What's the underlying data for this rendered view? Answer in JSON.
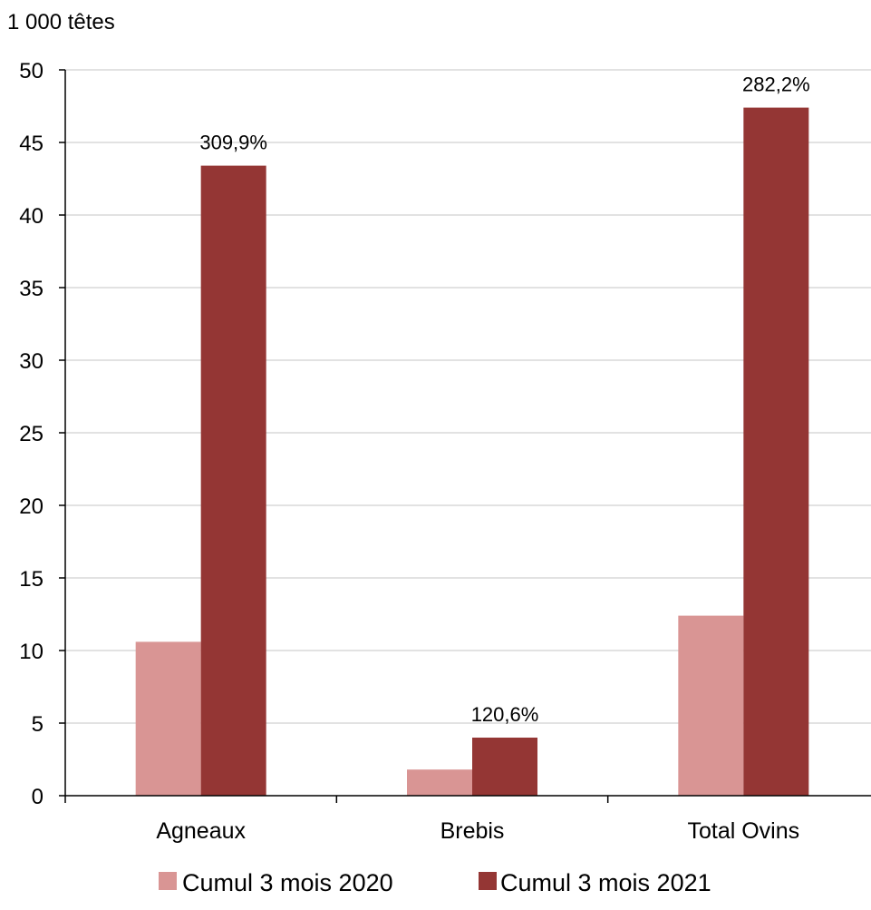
{
  "chart_data": {
    "type": "bar",
    "unit_label": "1 000 têtes",
    "categories": [
      "Agneaux",
      "Brebis",
      "Total Ovins"
    ],
    "series": [
      {
        "name": "Cumul 3 mois 2020",
        "color": "#d99594",
        "values": [
          10.6,
          1.8,
          12.4
        ]
      },
      {
        "name": "Cumul 3 mois 2021",
        "color": "#943634",
        "values": [
          43.4,
          4.0,
          47.4
        ]
      }
    ],
    "data_labels": [
      "309,9%",
      "120,6%",
      "282,2%"
    ],
    "ylim": [
      0,
      50
    ],
    "yticks": [
      0,
      5,
      10,
      15,
      20,
      25,
      30,
      35,
      40,
      45,
      50
    ],
    "grid": true,
    "legend_position": "bottom"
  }
}
